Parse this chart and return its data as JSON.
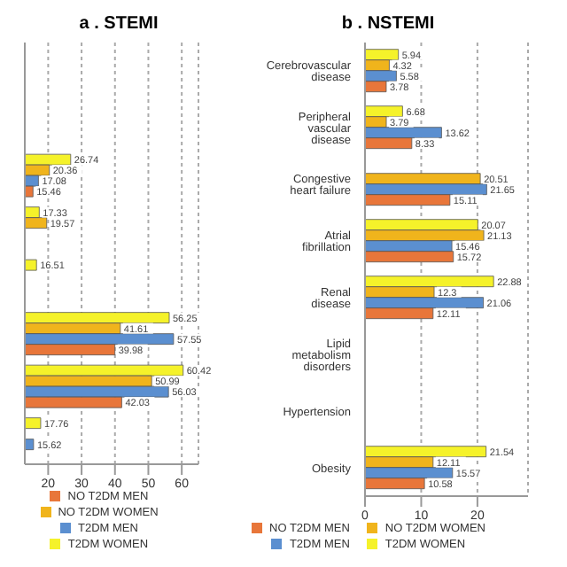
{
  "chart_data": [
    {
      "type": "bar",
      "title": "a . STEMI",
      "orientation": "horizontal",
      "categories": [
        null,
        null,
        null,
        null,
        null,
        null,
        null,
        null
      ],
      "tick_labels": "x",
      "xlim": [
        13,
        65
      ],
      "xticks": [
        20,
        30,
        40,
        50,
        60
      ],
      "grid": "x",
      "data_labels": true,
      "legend": "bottom",
      "series": [
        {
          "name": "T2DM WOMEN",
          "color": "#f5f22a",
          "values": [
            null,
            null,
            26.74,
            17.33,
            16.51,
            56.25,
            60.42,
            17.76
          ]
        },
        {
          "name": "NO T2DM WOMEN",
          "color": "#f0b41c",
          "values": [
            null,
            null,
            20.36,
            19.57,
            null,
            41.61,
            50.99,
            null
          ]
        },
        {
          "name": "T2DM MEN",
          "color": "#5b8fd0",
          "values": [
            null,
            null,
            17.08,
            null,
            null,
            57.55,
            56.03,
            15.62
          ]
        },
        {
          "name": "NO T2DM MEN",
          "color": "#e8763a",
          "values": [
            null,
            null,
            15.46,
            null,
            null,
            39.98,
            42.03,
            null
          ]
        }
      ]
    },
    {
      "type": "bar",
      "title": "b . NSTEMI",
      "orientation": "horizontal",
      "categories": [
        "Cerebrovascular disease",
        "Peripheral vascular disease",
        "Congestive heart failure",
        "Atrial fibrillation",
        "Renal disease",
        "Lipid metabolism disorders",
        "Hypertension",
        "Obesity"
      ],
      "xlim": [
        0,
        29
      ],
      "xticks": [
        0,
        10,
        20
      ],
      "grid": "x",
      "data_labels": true,
      "legend": "bottom",
      "series": [
        {
          "name": "T2DM WOMEN",
          "color": "#f5f22a",
          "values": [
            5.94,
            6.68,
            null,
            20.07,
            22.88,
            null,
            null,
            21.54
          ]
        },
        {
          "name": "NO T2DM WOMEN",
          "color": "#f0b41c",
          "values": [
            4.32,
            3.79,
            20.51,
            21.13,
            12.3,
            null,
            null,
            12.11
          ]
        },
        {
          "name": "T2DM MEN",
          "color": "#5b8fd0",
          "values": [
            5.58,
            13.62,
            21.65,
            15.46,
            21.06,
            null,
            null,
            15.57
          ]
        },
        {
          "name": "NO T2DM MEN",
          "color": "#e8763a",
          "values": [
            3.78,
            8.33,
            15.11,
            15.72,
            12.11,
            null,
            null,
            10.58
          ]
        }
      ]
    }
  ]
}
